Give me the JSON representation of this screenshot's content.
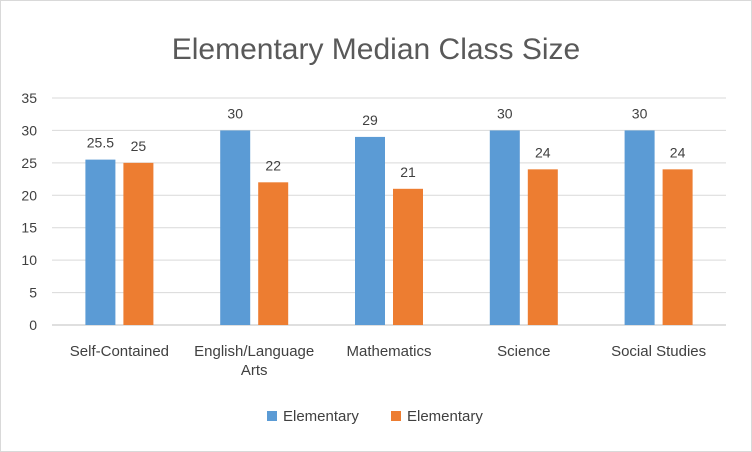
{
  "chart_data": {
    "type": "bar",
    "title": "Elementary Median Class Size",
    "categories": [
      [
        "Self-Contained"
      ],
      [
        "English/Language",
        "Arts"
      ],
      [
        "Mathematics"
      ],
      [
        "Science"
      ],
      [
        "Social Studies"
      ]
    ],
    "series": [
      {
        "name": "Elementary",
        "color": "#5b9bd5",
        "values": [
          25.5,
          30,
          29,
          30,
          30
        ]
      },
      {
        "name": "Elementary",
        "color": "#ed7d31",
        "values": [
          25,
          22,
          21,
          24,
          24
        ]
      }
    ],
    "ylim": [
      0,
      35
    ],
    "yticks": [
      0,
      5,
      10,
      15,
      20,
      25,
      30,
      35
    ],
    "grid": true,
    "legend_position": "bottom",
    "data_labels": true
  }
}
